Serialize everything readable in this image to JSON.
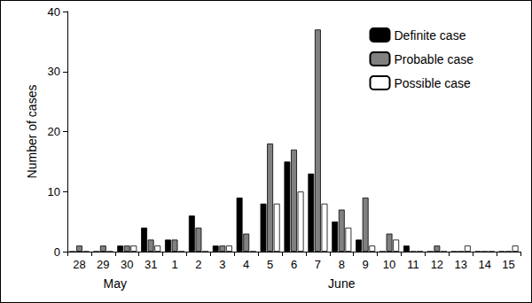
{
  "chart_data": {
    "type": "bar",
    "y_label": "Number of cases",
    "categories": [
      "28",
      "29",
      "30",
      "31",
      "1",
      "2",
      "3",
      "4",
      "5",
      "6",
      "7",
      "8",
      "9",
      "10",
      "11",
      "12",
      "13",
      "14",
      "15"
    ],
    "category_groups": [
      {
        "label": "May",
        "categories": [
          "28",
          "29",
          "30",
          "31"
        ]
      },
      {
        "label": "June",
        "categories": [
          "1",
          "2",
          "3",
          "4",
          "5",
          "6",
          "7",
          "8",
          "9",
          "10",
          "11",
          "12",
          "13",
          "14",
          "15"
        ]
      }
    ],
    "series": [
      {
        "name": "Definite case",
        "color": "#000000",
        "values": [
          0,
          0,
          1,
          4,
          2,
          6,
          1,
          9,
          8,
          15,
          13,
          5,
          2,
          0,
          1,
          0,
          0,
          0,
          0
        ]
      },
      {
        "name": "Probable case",
        "color": "#808080",
        "values": [
          1,
          1,
          1,
          2,
          2,
          4,
          1,
          3,
          18,
          17,
          37,
          7,
          9,
          3,
          0,
          1,
          0,
          0,
          0
        ]
      },
      {
        "name": "Possible case",
        "color": "#ffffff",
        "values": [
          0,
          0,
          1,
          1,
          0,
          0,
          1,
          0,
          8,
          10,
          8,
          4,
          1,
          2,
          0,
          0,
          1,
          0,
          1
        ]
      }
    ],
    "ylim": [
      0,
      40
    ],
    "yticks": [
      0,
      10,
      20,
      30,
      40
    ],
    "grid": false,
    "legend": "upper right"
  }
}
